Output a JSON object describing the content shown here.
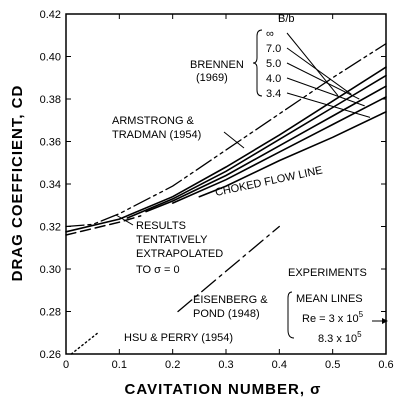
{
  "chart_data": {
    "type": "line",
    "xlabel": "CAVITATION NUMBER, σ",
    "ylabel": "DRAG COEFFICIENT, CD",
    "xlim": [
      0,
      0.6
    ],
    "ylim": [
      0.26,
      0.42
    ],
    "x_ticks": [
      "0",
      "0.1",
      "0.2",
      "0.3",
      "0.4",
      "0.5",
      "0.6"
    ],
    "y_ticks": [
      "0.26",
      "0.28",
      "0.30",
      "0.32",
      "0.34",
      "0.36",
      "0.38",
      "0.40",
      "0.42"
    ],
    "grid": false,
    "series": [
      {
        "name": "∞",
        "style": "solid",
        "x": [
          0.0,
          0.1,
          0.2,
          0.3,
          0.4,
          0.5,
          0.6
        ],
        "y": [
          0.3175,
          0.3235,
          0.334,
          0.348,
          0.363,
          0.379,
          0.395
        ]
      },
      {
        "name": "7.0",
        "style": "solid",
        "x": [
          0.115,
          0.2,
          0.3,
          0.4,
          0.5,
          0.6
        ],
        "y": [
          0.324,
          0.333,
          0.346,
          0.361,
          0.376,
          0.391
        ]
      },
      {
        "name": "5.0",
        "style": "solid",
        "x": [
          0.15,
          0.2,
          0.3,
          0.4,
          0.5,
          0.6
        ],
        "y": [
          0.327,
          0.332,
          0.344,
          0.358,
          0.372,
          0.386
        ]
      },
      {
        "name": "4.0",
        "style": "solid",
        "x": [
          0.2,
          0.3,
          0.4,
          0.5,
          0.6
        ],
        "y": [
          0.331,
          0.342,
          0.355,
          0.368,
          0.381
        ]
      },
      {
        "name": "3.4",
        "style": "solid",
        "x": [
          0.25,
          0.3,
          0.4,
          0.5,
          0.6
        ],
        "y": [
          0.334,
          0.339,
          0.351,
          0.362,
          0.374
        ]
      },
      {
        "name": "ARMSTRONG & TRADMAN (1954)",
        "style": "dashdotdot",
        "x": [
          0.0,
          0.05,
          0.1,
          0.2,
          0.3,
          0.4,
          0.5,
          0.6
        ],
        "y": [
          0.32,
          0.321,
          0.326,
          0.339,
          0.356,
          0.373,
          0.39,
          0.406
        ]
      },
      {
        "name": "RESULTS TENTATIVELY EXTRAPOLATED TO σ = 0",
        "style": "dashed",
        "x": [
          0.0,
          0.05,
          0.1,
          0.14
        ],
        "y": [
          0.316,
          0.319,
          0.322,
          0.325
        ]
      },
      {
        "name": "EISENBERG & POND (1948)",
        "style": "dashdot",
        "x": [
          0.21,
          0.4
        ],
        "y": [
          0.28,
          0.32
        ]
      },
      {
        "name": "HSU & PERRY (1954)",
        "style": "dotted",
        "x": [
          0.01,
          0.06
        ],
        "y": [
          0.26,
          0.27
        ]
      }
    ]
  },
  "annotations": {
    "brennen": "BRENNEN",
    "brennen_year": "(1969)",
    "bb_header": "B/b",
    "bb_values": [
      "∞",
      "7.0",
      "5.0",
      "4.0",
      "3.4"
    ],
    "armstrong_line1": "ARMSTRONG &",
    "armstrong_line2": "TRADMAN (1954)",
    "choked": "CHOKED FLOW LINE",
    "results_line1": "RESULTS",
    "results_line2": "TENTATIVELY",
    "results_line3": "EXTRAPOLATED",
    "results_line4": "TO  σ = 0",
    "experiments": "EXPERIMENTS",
    "mean_lines": "MEAN LINES",
    "re1": "Re = 3 x 10",
    "re_exp": "5",
    "re2": "8.3 x 10",
    "eisenberg1": "EISENBERG &",
    "eisenberg2": "POND (1948)",
    "hsu": "HSU & PERRY (1954)"
  }
}
